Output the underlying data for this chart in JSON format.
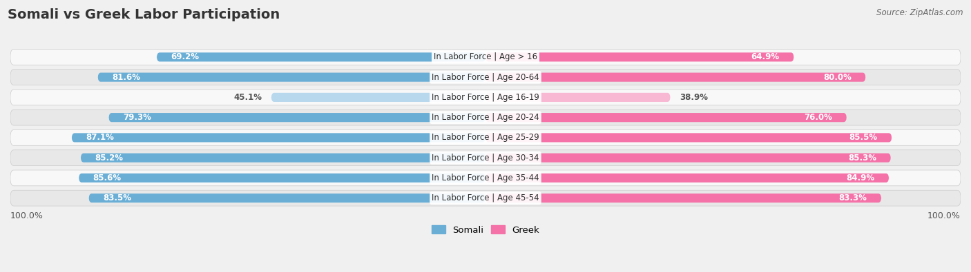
{
  "title": "Somali vs Greek Labor Participation",
  "source": "Source: ZipAtlas.com",
  "categories": [
    "In Labor Force | Age > 16",
    "In Labor Force | Age 20-64",
    "In Labor Force | Age 16-19",
    "In Labor Force | Age 20-24",
    "In Labor Force | Age 25-29",
    "In Labor Force | Age 30-34",
    "In Labor Force | Age 35-44",
    "In Labor Force | Age 45-54"
  ],
  "somali_values": [
    69.2,
    81.6,
    45.1,
    79.3,
    87.1,
    85.2,
    85.6,
    83.5
  ],
  "greek_values": [
    64.9,
    80.0,
    38.9,
    76.0,
    85.5,
    85.3,
    84.9,
    83.3
  ],
  "somali_color": "#6aaed6",
  "somali_color_light": "#b8d8ee",
  "greek_color": "#f472a8",
  "greek_color_light": "#f8b8d4",
  "light_threshold": 50,
  "bg_color": "#f0f0f0",
  "row_bg_light": "#f8f8f8",
  "row_bg_dark": "#e8e8e8",
  "label_fontsize": 8.5,
  "title_fontsize": 14,
  "source_fontsize": 8.5,
  "cat_fontsize": 8.5,
  "axis_label": "100.0%",
  "legend_somali": "Somali",
  "legend_greek": "Greek",
  "max_val": 100.0
}
